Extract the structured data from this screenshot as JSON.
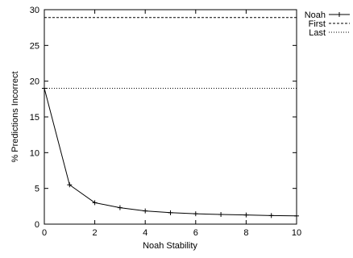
{
  "chart_data": {
    "type": "line",
    "xlabel": "Noah Stability",
    "ylabel": "% Predictions Incorrect",
    "xlim": [
      0,
      10
    ],
    "ylim": [
      0,
      30
    ],
    "xticks": [
      0,
      2,
      4,
      6,
      8,
      10
    ],
    "yticks": [
      0,
      5,
      10,
      15,
      20,
      25,
      30
    ],
    "grid": false,
    "legend_position": "right-outside-top",
    "series": [
      {
        "name": "Noah",
        "style": "solid-with-markers",
        "x": [
          0,
          1,
          2,
          3,
          4,
          5,
          6,
          7,
          8,
          9,
          10
        ],
        "y": [
          19.0,
          5.5,
          3.0,
          2.3,
          1.85,
          1.6,
          1.45,
          1.35,
          1.28,
          1.2,
          1.15
        ]
      },
      {
        "name": "First",
        "style": "dashed-horizontal",
        "x": [
          0,
          10
        ],
        "y": [
          28.9,
          28.9
        ]
      },
      {
        "name": "Last",
        "style": "dotted-horizontal",
        "x": [
          0,
          10
        ],
        "y": [
          19.0,
          19.0
        ]
      }
    ]
  }
}
